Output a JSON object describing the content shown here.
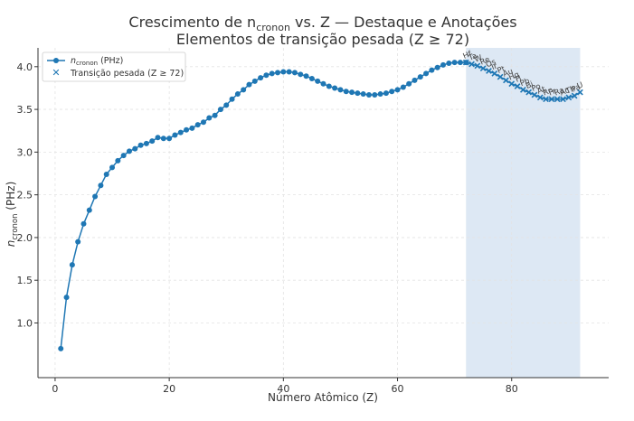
{
  "chart_data": {
    "type": "line",
    "title": "Crescimento de n",
    "title_sub": "cronon",
    "title_rest": " vs. Z — Destaque e Anotações",
    "subtitle": "Elementos de transição pesada (Z ≥ 72)",
    "xlabel": "Número Atômico (Z)",
    "ylabel_main": "n",
    "ylabel_sub": "cronon",
    "ylabel_unit": " (PHz)",
    "xlim": [
      -3,
      97
    ],
    "ylim": [
      0.36,
      4.22
    ],
    "x_ticks": [
      0,
      20,
      40,
      60,
      80
    ],
    "y_ticks": [
      1.0,
      1.5,
      2.0,
      2.5,
      3.0,
      3.5,
      4.0
    ],
    "grid": true,
    "legend_position": "top-left",
    "highlight_region": [
      72,
      92
    ],
    "colors": {
      "series": "#1f77b4",
      "highlight": "#dde8f4",
      "axis": "#333333"
    },
    "legend": {
      "series_main": "n",
      "series_sub": "cronon",
      "series_rest": " (PHz)",
      "heavy": "Transição pesada (Z ≥ 72)"
    },
    "series": [
      {
        "name": "n_cronon (PHz)",
        "x": [
          1,
          2,
          3,
          4,
          5,
          6,
          7,
          8,
          9,
          10,
          11,
          12,
          13,
          14,
          15,
          16,
          17,
          18,
          19,
          20,
          21,
          22,
          23,
          24,
          25,
          26,
          27,
          28,
          29,
          30,
          31,
          32,
          33,
          34,
          35,
          36,
          37,
          38,
          39,
          40,
          41,
          42,
          43,
          44,
          45,
          46,
          47,
          48,
          49,
          50,
          51,
          52,
          53,
          54,
          55,
          56,
          57,
          58,
          59,
          60,
          61,
          62,
          63,
          64,
          65,
          66,
          67,
          68,
          69,
          70,
          71,
          72
        ],
        "y": [
          0.7,
          1.3,
          1.68,
          1.95,
          2.16,
          2.32,
          2.48,
          2.61,
          2.74,
          2.82,
          2.9,
          2.96,
          3.01,
          3.04,
          3.08,
          3.1,
          3.13,
          3.17,
          3.16,
          3.16,
          3.2,
          3.23,
          3.26,
          3.28,
          3.32,
          3.35,
          3.4,
          3.43,
          3.5,
          3.55,
          3.62,
          3.68,
          3.73,
          3.79,
          3.83,
          3.87,
          3.9,
          3.92,
          3.93,
          3.94,
          3.94,
          3.93,
          3.91,
          3.89,
          3.86,
          3.83,
          3.8,
          3.77,
          3.75,
          3.73,
          3.71,
          3.7,
          3.69,
          3.68,
          3.67,
          3.67,
          3.68,
          3.69,
          3.71,
          3.73,
          3.76,
          3.8,
          3.84,
          3.88,
          3.92,
          3.96,
          3.99,
          4.02,
          4.04,
          4.05,
          4.05,
          4.05
        ]
      },
      {
        "name": "Transição pesada (Z ≥ 72)",
        "x": [
          72,
          73,
          74,
          75,
          76,
          77,
          78,
          79,
          80,
          81,
          82,
          83,
          84,
          85,
          86,
          87,
          88,
          89,
          90,
          91,
          92
        ],
        "y": [
          4.05,
          4.03,
          4.01,
          3.98,
          3.95,
          3.92,
          3.88,
          3.84,
          3.8,
          3.77,
          3.73,
          3.7,
          3.67,
          3.64,
          3.62,
          3.62,
          3.62,
          3.62,
          3.64,
          3.66,
          3.7
        ],
        "labels": [
          "Hf",
          "Ta",
          "W",
          "Re",
          "Os",
          "Ir",
          "Pt",
          "Au",
          "Hg",
          "Tl",
          "Pb",
          "Bi",
          "Po",
          "At",
          "Rn",
          "Fr",
          "Ra",
          "Ac",
          "Th",
          "Pa",
          "U"
        ]
      }
    ]
  }
}
